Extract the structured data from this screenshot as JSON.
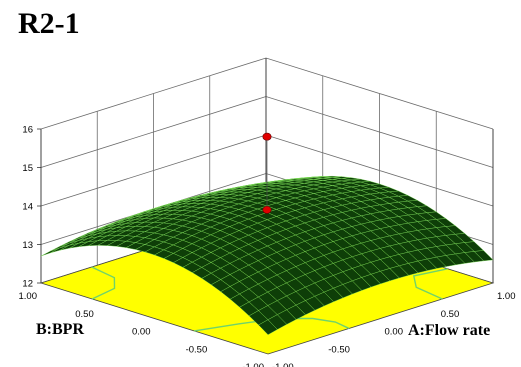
{
  "chart_data": {
    "type": "surface3d",
    "title": "R2-1",
    "x_axis": {
      "label": "A:Flow rate",
      "ticks": [
        "-1.00",
        "-0.50",
        "0.00",
        "0.50",
        "1.00"
      ],
      "range": [
        -1,
        1
      ]
    },
    "y_axis": {
      "label": "B:BPR",
      "ticks": [
        "-1.00",
        "-0.50",
        "0.00",
        "0.50",
        "1.00"
      ],
      "range": [
        -1,
        1
      ]
    },
    "z_axis": {
      "ticks": [
        "12",
        "13",
        "14",
        "15",
        "16"
      ],
      "range": [
        12,
        16
      ]
    },
    "surface": {
      "function": "saddle",
      "center_value": 14.0,
      "corner_values": {
        "x_minus_y_minus": 12.5,
        "x_plus_y_plus": 12.6,
        "x_minus_y_plus": 12.7,
        "x_plus_y_minus": 12.6
      },
      "x_edge_midpoints": [
        14.0,
        14.0
      ],
      "y_edge_midpoints": [
        12.5,
        12.5
      ]
    },
    "design_points": [
      {
        "x": 0,
        "y": 0,
        "z": 15.8,
        "above_surface": true
      },
      {
        "x": 0,
        "y": 0,
        "z": 13.9,
        "above_surface": false
      }
    ],
    "colors": {
      "surface_fill": "#0e3e08",
      "surface_wire": "#7ee05a",
      "floor": "#ffff00",
      "floor_contour": "#6fd36b",
      "design_point": "#e00000"
    },
    "grid": true
  }
}
